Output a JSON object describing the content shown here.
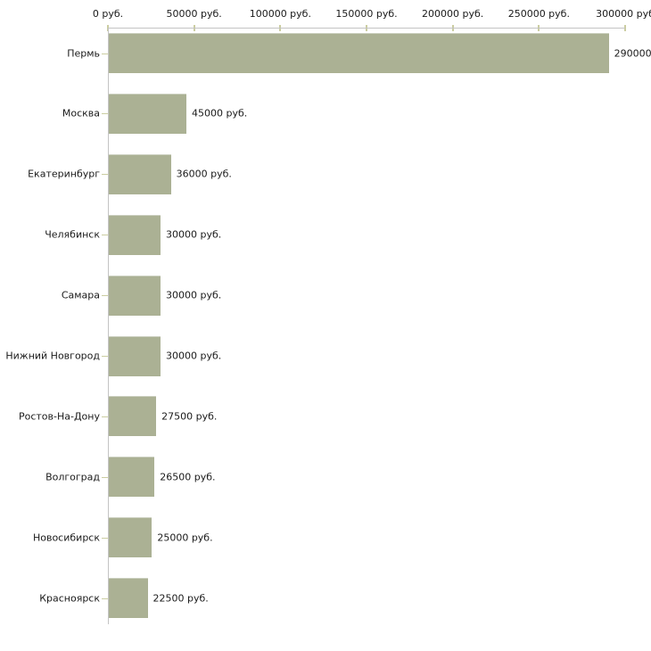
{
  "chart_data": {
    "type": "bar",
    "orientation": "horizontal",
    "title": "",
    "xlabel": "",
    "ylabel": "",
    "xlim": [
      0,
      300000
    ],
    "grid": false,
    "legend": false,
    "categories": [
      "Пермь",
      "Москва",
      "Екатеринбург",
      "Челябинск",
      "Самара",
      "Нижний Новгород",
      "Ростов-На-Дону",
      "Волгоград",
      "Новосибирск",
      "Красноярск"
    ],
    "values": [
      290000,
      45000,
      36000,
      30000,
      30000,
      30000,
      27500,
      26500,
      25000,
      22500
    ],
    "value_labels": [
      "290000",
      "45000 руб.",
      "36000 руб.",
      "30000 руб.",
      "30000 руб.",
      "30000 руб.",
      "27500 руб.",
      "26500 руб.",
      "25000 руб.",
      "22500 руб."
    ],
    "x_axis": {
      "tick_values": [
        0,
        50000,
        100000,
        150000,
        200000,
        250000,
        300000
      ],
      "tick_labels": [
        "0 руб.",
        "50000 руб.",
        "100000 руб.",
        "150000 руб.",
        "200000 руб.",
        "250000 руб.",
        "300000 руб"
      ]
    },
    "colors": {
      "bar_fill": "#abb194",
      "bar_top_border": "#ccd0c0",
      "axis_line": "#c4c4c4",
      "tick_mark": "#cbcda1",
      "text": "#1a1a1a",
      "background": "#ffffff"
    }
  }
}
